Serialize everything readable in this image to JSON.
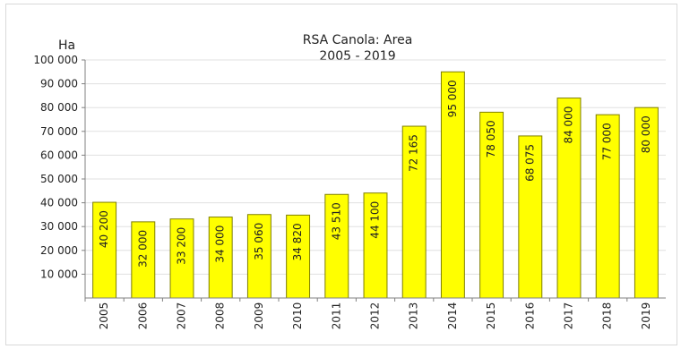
{
  "chart_data": {
    "type": "bar",
    "title": "RSA  Canola: Area",
    "subtitle": "2005 - 2019",
    "ylabel": "Ha",
    "xlabel": "",
    "ylim": [
      0,
      100000
    ],
    "yticks": [
      10000,
      20000,
      30000,
      40000,
      50000,
      60000,
      70000,
      80000,
      90000,
      100000
    ],
    "ytick_labels": [
      "10 000",
      "20 000",
      "30 000",
      "40 000",
      "50 000",
      "60 000",
      "70 000",
      "80 000",
      "90 000",
      "100 000"
    ],
    "grid": true,
    "legend": "none",
    "categories": [
      "2005",
      "2006",
      "2007",
      "2008",
      "2009",
      "2010",
      "2011",
      "2012",
      "2013",
      "2014",
      "2015",
      "2016",
      "2017",
      "2018",
      "2019"
    ],
    "values": [
      40200,
      32000,
      33200,
      34000,
      35060,
      34820,
      43510,
      44100,
      72165,
      95000,
      78050,
      68075,
      84000,
      77000,
      80000
    ],
    "value_labels": [
      "40 200",
      "32 000",
      "33 200",
      "34 000",
      "35 060",
      "34 820",
      "43 510",
      "44 100",
      "72 165",
      "95 000",
      "78 050",
      "68 075",
      "84 000",
      "77 000",
      "80 000"
    ],
    "colors": {
      "bar_fill": "#ffff00",
      "bar_stroke": "#7f7f00",
      "grid": "#e0e0e0",
      "axis": "#808080"
    }
  }
}
